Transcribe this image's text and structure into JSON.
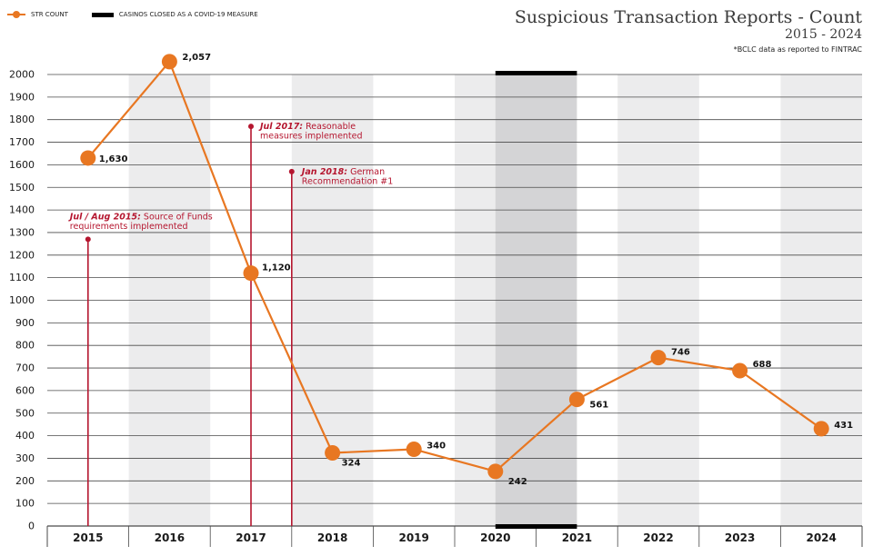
{
  "title": "Suspicious Transaction Reports - Count",
  "subtitle": "2015 - 2024",
  "source_note": "*BCLC data as reported to FINTRAC",
  "legend": [
    {
      "label": "STR COUNT",
      "kind": "line"
    },
    {
      "label": "CASINOS CLOSED AS A COVID-19 MEASURE",
      "kind": "bar"
    }
  ],
  "colors": {
    "series": "#e87722",
    "annotation": "#b5162f",
    "band": "#ececed",
    "covid_band": "#d4d4d6",
    "covid_marker": "#000000",
    "grid": "#4a4a4a",
    "axis_text": "#1a1a1a"
  },
  "chart_data": {
    "type": "line",
    "categories": [
      "2015",
      "2016",
      "2017",
      "2018",
      "2019",
      "2020",
      "2021",
      "2022",
      "2023",
      "2024"
    ],
    "series": [
      {
        "name": "STR COUNT",
        "values": [
          1630,
          2057,
          1120,
          324,
          340,
          242,
          561,
          746,
          688,
          431
        ]
      }
    ],
    "data_labels": [
      "1,630",
      "2,057",
      "1,120",
      "324",
      "340",
      "242",
      "561",
      "746",
      "688",
      "431"
    ],
    "y_ticks": [
      0,
      100,
      200,
      300,
      400,
      500,
      600,
      700,
      800,
      900,
      1000,
      1100,
      1200,
      1300,
      1400,
      1500,
      1600,
      1700,
      1800,
      1900,
      2000
    ],
    "ylim": [
      0,
      2000
    ],
    "grid": true,
    "legend_position": "top-left",
    "covid_period": {
      "start": 2020.0,
      "end": 2021.0
    },
    "annotations": [
      {
        "x": 2015.0,
        "y": 1270,
        "italic": "Jul / Aug 2015:",
        "rest_line1": " Source of Funds",
        "line2": "requirements implemented"
      },
      {
        "x": 2017.0,
        "y": 1770,
        "italic": "Jul 2017:",
        "rest_line1": " Reasonable",
        "line2": "measures implemented"
      },
      {
        "x": 2017.5,
        "y": 1570,
        "italic": "Jan 2018:",
        "rest_line1": " German",
        "line2": "Recommendation #1"
      }
    ]
  }
}
